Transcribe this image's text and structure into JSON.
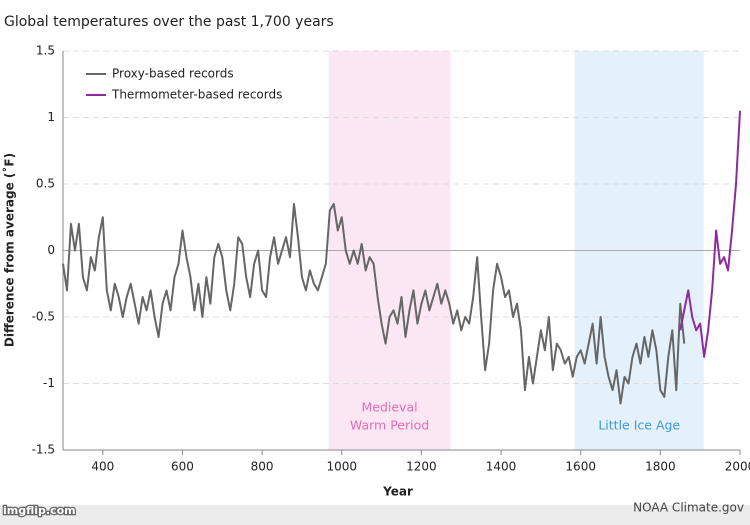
{
  "chart_data": {
    "type": "line",
    "title": "Global temperatures over the past 1,700 years",
    "x_label": "Year",
    "y_label": "Difference from average (˚F)",
    "source": "NOAA Climate.gov",
    "watermark": "imgflip.com",
    "xlim": [
      300,
      2000
    ],
    "xticks": [
      400,
      600,
      800,
      1000,
      1200,
      1400,
      1600,
      1800,
      2000
    ],
    "ylim": [
      -1.5,
      1.5
    ],
    "yticks": [
      -1.5,
      -1,
      -0.5,
      0,
      0.5,
      1,
      1.5
    ],
    "grid": true,
    "legend": "top-left",
    "regions": [
      {
        "start": 967,
        "end": 1273,
        "label": [
          "Medieval",
          "Warm Period"
        ],
        "color": "#fbe6f3",
        "text_color": "#e56db7"
      },
      {
        "start": 1585,
        "end": 1909,
        "label": [
          "Little Ice Age"
        ],
        "color": "#e4f1fa",
        "text_color": "#3f9ad3"
      }
    ],
    "series": [
      {
        "name": "Proxy-based records",
        "color": "#666666",
        "x": [
          300,
          310,
          320,
          330,
          340,
          350,
          360,
          370,
          380,
          390,
          400,
          410,
          420,
          430,
          440,
          450,
          460,
          470,
          480,
          490,
          500,
          510,
          520,
          530,
          540,
          550,
          560,
          570,
          580,
          590,
          600,
          610,
          620,
          630,
          640,
          650,
          660,
          670,
          680,
          690,
          700,
          710,
          720,
          730,
          740,
          750,
          760,
          770,
          780,
          790,
          800,
          810,
          820,
          830,
          840,
          850,
          860,
          870,
          880,
          890,
          900,
          910,
          920,
          930,
          940,
          950,
          960,
          970,
          980,
          990,
          1000,
          1010,
          1020,
          1030,
          1040,
          1050,
          1060,
          1070,
          1080,
          1090,
          1100,
          1110,
          1120,
          1130,
          1140,
          1150,
          1160,
          1170,
          1180,
          1190,
          1200,
          1210,
          1220,
          1230,
          1240,
          1250,
          1260,
          1270,
          1280,
          1290,
          1300,
          1310,
          1320,
          1330,
          1340,
          1350,
          1360,
          1370,
          1380,
          1390,
          1400,
          1410,
          1420,
          1430,
          1440,
          1450,
          1460,
          1470,
          1480,
          1490,
          1500,
          1510,
          1520,
          1530,
          1540,
          1550,
          1560,
          1570,
          1580,
          1590,
          1600,
          1610,
          1620,
          1630,
          1640,
          1650,
          1660,
          1670,
          1680,
          1690,
          1700,
          1710,
          1720,
          1730,
          1740,
          1750,
          1760,
          1770,
          1780,
          1790,
          1800,
          1810,
          1820,
          1830,
          1840,
          1850,
          1860
        ],
        "values": [
          -0.1,
          -0.3,
          0.2,
          0.0,
          0.2,
          -0.2,
          -0.3,
          -0.05,
          -0.15,
          0.1,
          0.25,
          -0.3,
          -0.45,
          -0.25,
          -0.35,
          -0.5,
          -0.35,
          -0.25,
          -0.4,
          -0.55,
          -0.35,
          -0.45,
          -0.3,
          -0.5,
          -0.65,
          -0.4,
          -0.3,
          -0.45,
          -0.2,
          -0.1,
          0.15,
          -0.05,
          -0.2,
          -0.45,
          -0.25,
          -0.5,
          -0.2,
          -0.4,
          -0.05,
          0.05,
          -0.05,
          -0.3,
          -0.45,
          -0.25,
          0.1,
          0.05,
          -0.2,
          -0.35,
          -0.1,
          0.0,
          -0.3,
          -0.35,
          -0.05,
          0.1,
          -0.1,
          0.0,
          0.1,
          -0.05,
          0.35,
          0.1,
          -0.2,
          -0.3,
          -0.15,
          -0.25,
          -0.3,
          -0.2,
          -0.1,
          0.3,
          0.35,
          0.15,
          0.25,
          0.0,
          -0.1,
          0.0,
          -0.1,
          0.05,
          -0.15,
          -0.05,
          -0.1,
          -0.35,
          -0.55,
          -0.7,
          -0.5,
          -0.45,
          -0.55,
          -0.35,
          -0.65,
          -0.45,
          -0.3,
          -0.55,
          -0.4,
          -0.3,
          -0.45,
          -0.35,
          -0.25,
          -0.4,
          -0.3,
          -0.4,
          -0.55,
          -0.45,
          -0.6,
          -0.5,
          -0.55,
          -0.35,
          -0.05,
          -0.5,
          -0.9,
          -0.7,
          -0.3,
          -0.1,
          -0.2,
          -0.35,
          -0.3,
          -0.5,
          -0.4,
          -0.6,
          -1.05,
          -0.8,
          -1.0,
          -0.8,
          -0.6,
          -0.75,
          -0.5,
          -0.9,
          -0.7,
          -0.75,
          -0.85,
          -0.8,
          -0.95,
          -0.8,
          -0.75,
          -0.85,
          -0.7,
          -0.55,
          -0.85,
          -0.5,
          -0.8,
          -0.95,
          -1.05,
          -0.9,
          -1.15,
          -0.95,
          -1.0,
          -0.8,
          -0.7,
          -0.85,
          -0.65,
          -0.8,
          -0.6,
          -0.75,
          -1.05,
          -1.1,
          -0.8,
          -0.6,
          -1.05,
          -0.4,
          -0.7
        ]
      },
      {
        "name": "Thermometer-based records",
        "color": "#8e2a9e",
        "x": [
          1850,
          1860,
          1870,
          1880,
          1890,
          1900,
          1910,
          1920,
          1930,
          1940,
          1950,
          1960,
          1970,
          1980,
          1990,
          2000
        ],
        "values": [
          -0.6,
          -0.45,
          -0.3,
          -0.5,
          -0.6,
          -0.55,
          -0.8,
          -0.6,
          -0.3,
          0.15,
          -0.1,
          -0.05,
          -0.15,
          0.15,
          0.5,
          1.05
        ]
      }
    ]
  }
}
